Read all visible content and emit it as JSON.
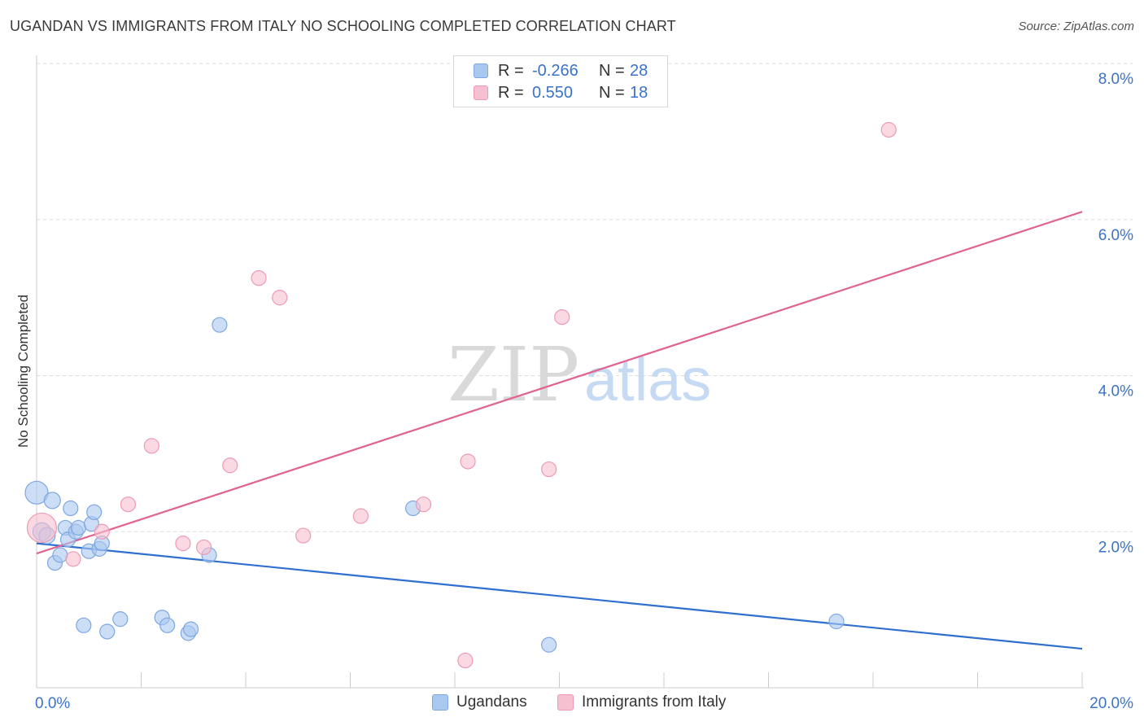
{
  "title": "UGANDAN VS IMMIGRANTS FROM ITALY NO SCHOOLING COMPLETED CORRELATION CHART",
  "source": "Source: ZipAtlas.com",
  "watermark": {
    "zip": "ZIP",
    "atlas": "atlas"
  },
  "legend": {
    "rows": [
      {
        "r_label": "R =",
        "r_value": "-0.266",
        "n_label": "N =",
        "n_value": "28",
        "color": "#a9c8f0",
        "border": "#7fa7e0"
      },
      {
        "r_label": "R =",
        "r_value": "0.550",
        "n_label": "N =",
        "n_value": "18",
        "color": "#f7c0d0",
        "border": "#ee9ab4"
      }
    ]
  },
  "bottom_legend": [
    {
      "label": "Ugandans",
      "color": "#a9c8f0",
      "border": "#7fa7e0"
    },
    {
      "label": "Immigrants from Italy",
      "color": "#f7c0d0",
      "border": "#ee9ab4"
    }
  ],
  "chart_data": {
    "type": "scatter",
    "title": "UGANDAN VS IMMIGRANTS FROM ITALY NO SCHOOLING COMPLETED CORRELATION CHART",
    "xlabel": "",
    "ylabel": "No Schooling Completed",
    "xlim": [
      0,
      20
    ],
    "ylim": [
      0,
      8
    ],
    "x_tick_labels": [
      "0.0%",
      "20.0%"
    ],
    "y_ticks": [
      2,
      4,
      6,
      8
    ],
    "y_tick_labels": [
      "2.0%",
      "4.0%",
      "6.0%",
      "8.0%"
    ],
    "grid": "horizontal dashed",
    "legend_position": "top-center",
    "series": [
      {
        "name": "Ugandans",
        "color": "#a9c8f0",
        "stroke": "#7fa7e0",
        "trend_color": "#2f6fcf",
        "points": [
          [
            0.0,
            2.5,
            14
          ],
          [
            0.1,
            2.0,
            11
          ],
          [
            0.2,
            1.95,
            10
          ],
          [
            0.3,
            2.4,
            10
          ],
          [
            0.35,
            1.6,
            9
          ],
          [
            0.45,
            1.7,
            9
          ],
          [
            0.55,
            2.05,
            9
          ],
          [
            0.6,
            1.9,
            9
          ],
          [
            0.65,
            2.3,
            9
          ],
          [
            0.75,
            2.0,
            9
          ],
          [
            0.8,
            2.05,
            9
          ],
          [
            0.9,
            0.8,
            9
          ],
          [
            1.0,
            1.75,
            9
          ],
          [
            1.05,
            2.1,
            9
          ],
          [
            1.1,
            2.25,
            9
          ],
          [
            1.2,
            1.78,
            9
          ],
          [
            1.25,
            1.85,
            9
          ],
          [
            1.35,
            0.72,
            9
          ],
          [
            1.6,
            0.88,
            9
          ],
          [
            2.4,
            0.9,
            9
          ],
          [
            2.5,
            0.8,
            9
          ],
          [
            2.9,
            0.7,
            9
          ],
          [
            2.95,
            0.75,
            9
          ],
          [
            3.3,
            1.7,
            9
          ],
          [
            3.5,
            4.65,
            9
          ],
          [
            7.2,
            2.3,
            9
          ],
          [
            9.8,
            0.55,
            9
          ],
          [
            15.3,
            0.85,
            9
          ]
        ],
        "trend": [
          [
            0,
            1.85
          ],
          [
            20,
            0.5
          ]
        ]
      },
      {
        "name": "Immigrants from Italy",
        "color": "#f7c0d0",
        "stroke": "#ee9ab4",
        "trend_color": "#e0648f",
        "points": [
          [
            0.1,
            2.05,
            18
          ],
          [
            0.7,
            1.65,
            9
          ],
          [
            1.25,
            2.0,
            9
          ],
          [
            1.75,
            2.35,
            9
          ],
          [
            2.2,
            3.1,
            9
          ],
          [
            2.8,
            1.85,
            9
          ],
          [
            3.2,
            1.8,
            9
          ],
          [
            3.7,
            2.85,
            9
          ],
          [
            4.25,
            5.25,
            9
          ],
          [
            4.65,
            5.0,
            9
          ],
          [
            5.1,
            1.95,
            9
          ],
          [
            6.2,
            2.2,
            9
          ],
          [
            7.4,
            2.35,
            9
          ],
          [
            8.2,
            0.35,
            9
          ],
          [
            8.25,
            2.9,
            9
          ],
          [
            9.8,
            2.8,
            9
          ],
          [
            10.05,
            4.75,
            9
          ],
          [
            16.3,
            7.15,
            9
          ]
        ],
        "trend": [
          [
            0,
            1.72
          ],
          [
            20,
            6.1
          ]
        ]
      }
    ]
  }
}
